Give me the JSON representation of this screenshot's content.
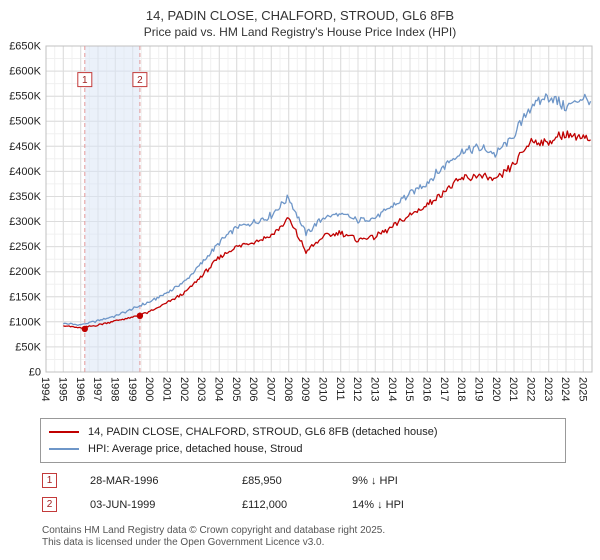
{
  "title": "14, PADIN CLOSE, CHALFORD, STROUD, GL6 8FB",
  "subtitle": "Price paid vs. HM Land Registry's House Price Index (HPI)",
  "chart_data": {
    "type": "line",
    "x_range": [
      1994,
      2025.5
    ],
    "ylim": [
      0,
      650000
    ],
    "grid": true,
    "legend_position": "bottom",
    "y_ticks": [
      0,
      50000,
      100000,
      150000,
      200000,
      250000,
      300000,
      350000,
      400000,
      450000,
      500000,
      550000,
      600000,
      650000
    ],
    "y_tick_labels": [
      "£0",
      "£50K",
      "£100K",
      "£150K",
      "£200K",
      "£250K",
      "£300K",
      "£350K",
      "£400K",
      "£450K",
      "£500K",
      "£550K",
      "£600K",
      "£650K"
    ],
    "x_ticks": [
      1994,
      1995,
      1996,
      1997,
      1998,
      1999,
      2000,
      2001,
      2002,
      2003,
      2004,
      2005,
      2006,
      2007,
      2008,
      2009,
      2010,
      2011,
      2012,
      2013,
      2014,
      2015,
      2016,
      2017,
      2018,
      2019,
      2020,
      2021,
      2022,
      2023,
      2024,
      2025
    ],
    "x_tick_labels": [
      "1994",
      "1995",
      "1996",
      "1997",
      "1998",
      "1999",
      "2000",
      "2001",
      "2002",
      "2003",
      "2004",
      "2005",
      "2006",
      "2007",
      "2008",
      "2009",
      "2010",
      "2011",
      "2012",
      "2013",
      "2014",
      "2015",
      "2016",
      "2017",
      "2018",
      "2019",
      "2020",
      "2021",
      "2022",
      "2023",
      "2024",
      "2025"
    ],
    "series": [
      {
        "name": "HPI: Average price, detached house, Stroud",
        "color": "#6e96c8",
        "x": [
          1995,
          1996,
          1997,
          1998,
          1999,
          2000,
          2001,
          2002,
          2003,
          2004,
          2005,
          2006,
          2007,
          2008,
          2009,
          2010,
          2011,
          2012,
          2013,
          2014,
          2015,
          2016,
          2017,
          2018,
          2019,
          2020,
          2021,
          2022,
          2023,
          2024,
          2025,
          2025.4
        ],
        "values": [
          97000,
          94000,
          102000,
          112000,
          126000,
          140000,
          158000,
          180000,
          218000,
          258000,
          288000,
          298000,
          312000,
          348000,
          275000,
          308000,
          315000,
          302000,
          308000,
          330000,
          355000,
          378000,
          412000,
          440000,
          447000,
          435000,
          472000,
          532000,
          550000,
          528000,
          548000,
          538000
        ]
      },
      {
        "name": "14, PADIN CLOSE, CHALFORD, STROUD, GL6 8FB (detached house)",
        "color": "#c00000",
        "x": [
          1995,
          1996,
          1997,
          1998,
          1999,
          2000,
          2001,
          2002,
          2003,
          2004,
          2005,
          2006,
          2007,
          2008,
          2009,
          2010,
          2011,
          2012,
          2013,
          2014,
          2015,
          2016,
          2017,
          2018,
          2019,
          2020,
          2021,
          2022,
          2023,
          2024,
          2025,
          2025.4
        ],
        "values": [
          93000,
          87000,
          94000,
          102000,
          109000,
          120000,
          138000,
          158000,
          192000,
          228000,
          250000,
          260000,
          272000,
          306000,
          240000,
          270000,
          277000,
          264000,
          270000,
          290000,
          312000,
          332000,
          362000,
          385000,
          392000,
          382000,
          415000,
          462000,
          458000,
          475000,
          468000,
          458000
        ]
      }
    ],
    "shade_between": [
      1996.24,
      1999.42
    ],
    "sales": [
      {
        "n": 1,
        "x": 1996.24,
        "price": 85950,
        "date": "28-MAR-1996",
        "price_label": "£85,950",
        "hpi_diff": "9% ↓ HPI"
      },
      {
        "n": 2,
        "x": 1999.42,
        "price": 112000,
        "date": "03-JUN-1999",
        "price_label": "£112,000",
        "hpi_diff": "14% ↓ HPI"
      }
    ],
    "marker_box_level": 583000,
    "colors": {
      "property_line": "#c00000",
      "hpi_line": "#6e96c8",
      "sale_dashed_line": "#e39a9a",
      "shade_band": "#dbe6f5",
      "grid_major": "#dcdcdc",
      "grid_minor": "#f0f0f0"
    }
  },
  "legend": {
    "property_label": "14, PADIN CLOSE, CHALFORD, STROUD, GL6 8FB (detached house)",
    "hpi_label": "HPI: Average price, detached house, Stroud"
  },
  "footer": {
    "line1": "Contains HM Land Registry data © Crown copyright and database right 2025.",
    "line2": "This data is licensed under the Open Government Licence v3.0."
  }
}
